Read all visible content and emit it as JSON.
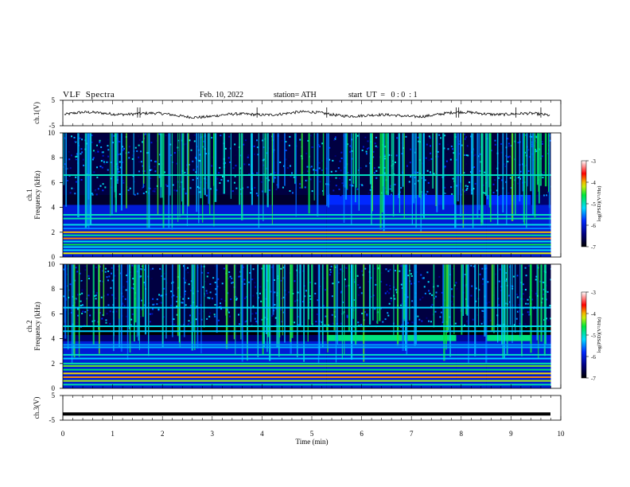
{
  "header": {
    "title": "VLF  Spectra",
    "date": "Feb. 10, 2022",
    "station": "station= ATH",
    "start": "start  UT  =   0 : 0  : 1"
  },
  "chart_data": [
    {
      "type": "line",
      "panel": "ch1",
      "ylabel": "ch.1(V)",
      "yticks": [
        "5",
        "-5"
      ],
      "ylim": [
        -5,
        5
      ],
      "xlim": [
        0,
        10
      ],
      "description_of_signal": "noisy waveform near 0 V"
    },
    {
      "type": "heatmap",
      "panel": "ch1-spectrogram",
      "ylabel": "ch.1\nFrequency (kHz)",
      "yticks": [
        "0",
        "2",
        "4",
        "6",
        "8",
        "10"
      ],
      "ylim": [
        0,
        10
      ],
      "xlim": [
        0,
        10
      ],
      "colorbar": {
        "label": "log(PSD)(V²/Hz)",
        "ticks": [
          "-3",
          "-4",
          "-5",
          "-6",
          "-7"
        ],
        "range": [
          -7,
          -3
        ]
      },
      "lines_khz": [
        0.3,
        0.55,
        0.8,
        1.0,
        1.25,
        1.5,
        1.75,
        2.0,
        2.3,
        2.6,
        3.1,
        3.4,
        6.6
      ],
      "noise_band_khz": [
        4.2,
        5.0
      ],
      "segments": [
        {
          "x0": 0.0,
          "x1": 5.3,
          "band_level": -6.8
        },
        {
          "x0": 5.3,
          "x1": 7.9,
          "band_level": -5.8
        },
        {
          "x0": 7.9,
          "x1": 8.5,
          "band_level": -6.8
        },
        {
          "x0": 8.5,
          "x1": 9.4,
          "band_level": -5.8
        },
        {
          "x0": 9.4,
          "x1": 9.8,
          "band_level": -6.5
        }
      ]
    },
    {
      "type": "heatmap",
      "panel": "ch2-spectrogram",
      "ylabel": "ch.2\nFrequency (kHz)",
      "yticks": [
        "0",
        "2",
        "4",
        "6",
        "8",
        "10"
      ],
      "ylim": [
        0,
        10
      ],
      "xlim": [
        0,
        10
      ],
      "colorbar": {
        "label": "log(PSD)(V²/Hz)",
        "ticks": [
          "-3",
          "-4",
          "-5",
          "-6",
          "-7"
        ],
        "range": [
          -7,
          -3
        ]
      },
      "lines_khz": [
        0.3,
        0.6,
        0.9,
        1.2,
        1.5,
        1.8,
        2.0,
        2.4,
        2.7,
        3.3,
        3.5,
        4.6,
        5.0,
        6.5
      ],
      "noise_band_khz": [
        3.8,
        4.3
      ],
      "segments": [
        {
          "x0": 0.0,
          "x1": 5.3,
          "band_level": -6.5
        },
        {
          "x0": 5.3,
          "x1": 7.9,
          "band_level": -4.8
        },
        {
          "x0": 7.9,
          "x1": 8.5,
          "band_level": -6.3
        },
        {
          "x0": 8.5,
          "x1": 9.4,
          "band_level": -4.8
        },
        {
          "x0": 9.4,
          "x1": 9.8,
          "band_level": -6.0
        }
      ]
    },
    {
      "type": "line",
      "panel": "ch3",
      "ylabel": "ch.3(V)",
      "yticks": [
        "5",
        "-5"
      ],
      "ylim": [
        -5,
        5
      ],
      "xlim": [
        0,
        10
      ],
      "constant_value": -2.5,
      "xlabel": "Time  (min)",
      "xticks": [
        "0",
        "1",
        "2",
        "3",
        "4",
        "5",
        "6",
        "7",
        "8",
        "9",
        "10"
      ]
    }
  ]
}
